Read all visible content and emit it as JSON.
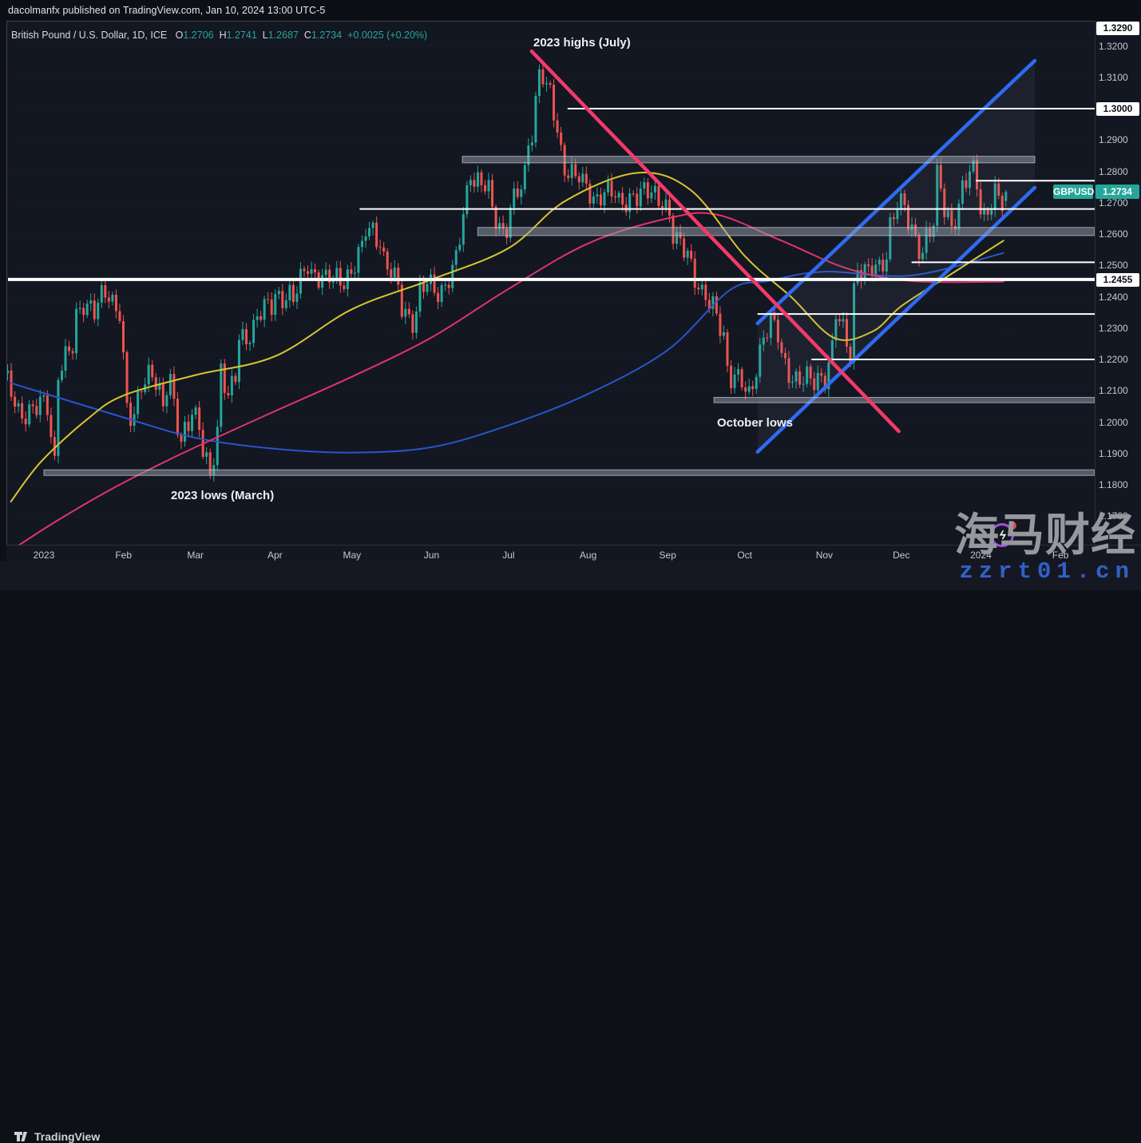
{
  "publish_bar": {
    "text": "dacolmanfx published on TradingView.com, Jan 10, 2024 13:00 UTC-5"
  },
  "legend": {
    "symbol_title": "British Pound / U.S. Dollar, 1D, ICE",
    "ohlc": {
      "o_label": "O",
      "o_value": "1.2706",
      "h_label": "H",
      "h_value": "1.2741",
      "l_label": "L",
      "l_value": "1.2687",
      "c_label": "C",
      "c_value": "1.2734"
    },
    "change": "+0.0025 (+0.20%)"
  },
  "symbol_badge": {
    "label": "GBPUSD",
    "price_label": "1.2734"
  },
  "annotations": {
    "july_highs": {
      "text": "2023 highs (July)"
    },
    "october_lows": {
      "text": "October lows"
    },
    "march_lows": {
      "text": "2023 lows (March)"
    }
  },
  "watermark": {
    "title": "海马财经",
    "url": "zzrt01.cn"
  },
  "footer": {
    "brand": "TradingView"
  },
  "axis": {
    "price_ticks": [
      {
        "label": "1.3290",
        "price": 1.329,
        "style": "white"
      },
      {
        "label": "1.3200",
        "price": 1.32,
        "style": "plain"
      },
      {
        "label": "1.3100",
        "price": 1.31,
        "style": "plain"
      },
      {
        "label": "1.3000",
        "price": 1.3,
        "style": "white"
      },
      {
        "label": "1.2900",
        "price": 1.29,
        "style": "plain"
      },
      {
        "label": "1.2800",
        "price": 1.28,
        "style": "plain"
      },
      {
        "label": "1.2700",
        "price": 1.27,
        "style": "plain"
      },
      {
        "label": "1.2600",
        "price": 1.26,
        "style": "plain"
      },
      {
        "label": "1.2500",
        "price": 1.25,
        "style": "plain"
      },
      {
        "label": "1.2455",
        "price": 1.2455,
        "style": "white"
      },
      {
        "label": "1.2400",
        "price": 1.24,
        "style": "plain"
      },
      {
        "label": "1.2300",
        "price": 1.23,
        "style": "plain"
      },
      {
        "label": "1.2200",
        "price": 1.22,
        "style": "plain"
      },
      {
        "label": "1.2100",
        "price": 1.21,
        "style": "plain"
      },
      {
        "label": "1.2000",
        "price": 1.2,
        "style": "plain"
      },
      {
        "label": "1.1900",
        "price": 1.19,
        "style": "plain"
      },
      {
        "label": "1.1800",
        "price": 1.18,
        "style": "plain"
      },
      {
        "label": "1.1700",
        "price": 1.17,
        "style": "plain"
      }
    ],
    "time_ticks": [
      {
        "label": "2023",
        "date": "2023-01-01"
      },
      {
        "label": "Feb",
        "date": "2023-02-01"
      },
      {
        "label": "Mar",
        "date": "2023-03-01"
      },
      {
        "label": "Apr",
        "date": "2023-04-01"
      },
      {
        "label": "May",
        "date": "2023-05-01"
      },
      {
        "label": "Jun",
        "date": "2023-06-01"
      },
      {
        "label": "Jul",
        "date": "2023-07-01"
      },
      {
        "label": "Aug",
        "date": "2023-08-01"
      },
      {
        "label": "Sep",
        "date": "2023-09-01"
      },
      {
        "label": "Oct",
        "date": "2023-10-01"
      },
      {
        "label": "Nov",
        "date": "2023-11-01"
      },
      {
        "label": "Dec",
        "date": "2023-12-01"
      },
      {
        "label": "2024",
        "date": "2024-01-01"
      },
      {
        "label": "Feb",
        "date": "2024-02-01"
      }
    ]
  },
  "chart_data": {
    "type": "candlestick",
    "symbol": "GBPUSD",
    "timeframe": "1D",
    "exchange": "ICE",
    "title": "British Pound / U.S. Dollar",
    "ylim": [
      1.161,
      1.328
    ],
    "current_price": 1.2734,
    "last_ohlc": {
      "o": 1.2706,
      "h": 1.2741,
      "l": 1.2687,
      "c": 1.2734
    },
    "date_range": [
      "2022-12-19",
      "2024-01-10"
    ],
    "price_path": [
      [
        "2022-12-19",
        1.214
      ],
      [
        "2022-12-23",
        1.204
      ],
      [
        "2022-12-29",
        1.2035
      ],
      [
        "2023-01-04",
        1.2055
      ],
      [
        "2023-01-06",
        1.188
      ],
      [
        "2023-01-09",
        1.217
      ],
      [
        "2023-01-13",
        1.223
      ],
      [
        "2023-01-18",
        1.239
      ],
      [
        "2023-01-23",
        1.236
      ],
      [
        "2023-01-26",
        1.24
      ],
      [
        "2023-02-01",
        1.237
      ],
      [
        "2023-02-03",
        1.205
      ],
      [
        "2023-02-07",
        1.1995
      ],
      [
        "2023-02-09",
        1.212
      ],
      [
        "2023-02-14",
        1.218
      ],
      [
        "2023-02-17",
        1.204
      ],
      [
        "2023-02-21",
        1.2115
      ],
      [
        "2023-02-24",
        1.1945
      ],
      [
        "2023-03-01",
        1.2025
      ],
      [
        "2023-03-08",
        1.1845
      ],
      [
        "2023-03-13",
        1.218
      ],
      [
        "2023-03-15",
        1.206
      ],
      [
        "2023-03-20",
        1.227
      ],
      [
        "2023-03-23",
        1.229
      ],
      [
        "2023-03-28",
        1.234
      ],
      [
        "2023-04-03",
        1.2415
      ],
      [
        "2023-04-10",
        1.238
      ],
      [
        "2023-04-14",
        1.252
      ],
      [
        "2023-04-21",
        1.244
      ],
      [
        "2023-04-26",
        1.2465
      ],
      [
        "2023-05-02",
        1.247
      ],
      [
        "2023-05-08",
        1.262
      ],
      [
        "2023-05-10",
        1.2625
      ],
      [
        "2023-05-16",
        1.2485
      ],
      [
        "2023-05-25",
        1.2325
      ],
      [
        "2023-05-31",
        1.244
      ],
      [
        "2023-06-06",
        1.2425
      ],
      [
        "2023-06-12",
        1.251
      ],
      [
        "2023-06-16",
        1.2815
      ],
      [
        "2023-06-22",
        1.2745
      ],
      [
        "2023-06-29",
        1.2615
      ],
      [
        "2023-07-06",
        1.274
      ],
      [
        "2023-07-11",
        1.2935
      ],
      [
        "2023-07-13",
        1.313
      ],
      [
        "2023-07-18",
        1.3035
      ],
      [
        "2023-07-21",
        1.286
      ],
      [
        "2023-07-27",
        1.279
      ],
      [
        "2023-08-03",
        1.2715
      ],
      [
        "2023-08-08",
        1.2745
      ],
      [
        "2023-08-14",
        1.2685
      ],
      [
        "2023-08-18",
        1.2735
      ],
      [
        "2023-08-23",
        1.2725
      ],
      [
        "2023-08-30",
        1.272
      ],
      [
        "2023-09-05",
        1.2565
      ],
      [
        "2023-09-11",
        1.251
      ],
      [
        "2023-09-14",
        1.241
      ],
      [
        "2023-09-20",
        1.234
      ],
      [
        "2023-09-26",
        1.2155
      ],
      [
        "2023-10-03",
        1.2075
      ],
      [
        "2023-10-06",
        1.2235
      ],
      [
        "2023-10-11",
        1.2315
      ],
      [
        "2023-10-17",
        1.2185
      ],
      [
        "2023-10-20",
        1.214
      ],
      [
        "2023-10-26",
        1.2125
      ],
      [
        "2023-11-01",
        1.2155
      ],
      [
        "2023-11-06",
        1.234
      ],
      [
        "2023-11-10",
        1.2225
      ],
      [
        "2023-11-14",
        1.25
      ],
      [
        "2023-11-17",
        1.2465
      ],
      [
        "2023-11-22",
        1.249
      ],
      [
        "2023-11-29",
        1.2695
      ],
      [
        "2023-12-04",
        1.2635
      ],
      [
        "2023-12-08",
        1.255
      ],
      [
        "2023-12-13",
        1.262
      ],
      [
        "2023-12-14",
        1.277
      ],
      [
        "2023-12-20",
        1.264
      ],
      [
        "2023-12-28",
        1.28
      ],
      [
        "2024-01-02",
        1.2665
      ],
      [
        "2024-01-05",
        1.272
      ],
      [
        "2024-01-09",
        1.269
      ],
      [
        "2024-01-10",
        1.2734
      ]
    ],
    "ma_yellow": [
      [
        "2022-12-19",
        1.1745
      ],
      [
        "2022-12-31",
        1.1875
      ],
      [
        "2023-01-18",
        1.201
      ],
      [
        "2023-02-01",
        1.2085
      ],
      [
        "2023-03-01",
        1.215
      ],
      [
        "2023-04-01",
        1.221
      ],
      [
        "2023-05-01",
        1.236
      ],
      [
        "2023-06-01",
        1.2455
      ],
      [
        "2023-07-01",
        1.2555
      ],
      [
        "2023-07-23",
        1.2705
      ],
      [
        "2023-08-20",
        1.2795
      ],
      [
        "2023-09-10",
        1.274
      ],
      [
        "2023-10-01",
        1.253
      ],
      [
        "2023-10-19",
        1.24
      ],
      [
        "2023-11-05",
        1.2268
      ],
      [
        "2023-11-20",
        1.229
      ],
      [
        "2023-12-01",
        1.237
      ],
      [
        "2023-12-20",
        1.247
      ],
      [
        "2024-01-10",
        1.258
      ]
    ],
    "ma_magenta": [
      [
        "2022-12-19",
        1.159
      ],
      [
        "2023-01-05",
        1.168
      ],
      [
        "2023-01-27",
        1.1785
      ],
      [
        "2023-02-14",
        1.1861
      ],
      [
        "2023-03-01",
        1.192
      ],
      [
        "2023-04-01",
        1.2035
      ],
      [
        "2023-05-01",
        1.2145
      ],
      [
        "2023-06-01",
        1.227
      ],
      [
        "2023-07-01",
        1.2425
      ],
      [
        "2023-08-01",
        1.257
      ],
      [
        "2023-09-01",
        1.265
      ],
      [
        "2023-09-20",
        1.2662
      ],
      [
        "2023-10-15",
        1.258
      ],
      [
        "2023-11-10",
        1.249
      ],
      [
        "2023-12-05",
        1.245
      ],
      [
        "2024-01-10",
        1.2448
      ]
    ],
    "ma_blue": [
      [
        "2022-12-19",
        1.2125
      ],
      [
        "2023-02-01",
        1.2015
      ],
      [
        "2023-03-01",
        1.195
      ],
      [
        "2023-04-01",
        1.1915
      ],
      [
        "2023-05-01",
        1.1903
      ],
      [
        "2023-06-01",
        1.192
      ],
      [
        "2023-07-01",
        1.199
      ],
      [
        "2023-08-01",
        1.209
      ],
      [
        "2023-09-01",
        1.223
      ],
      [
        "2023-09-25",
        1.242
      ],
      [
        "2023-10-10",
        1.245
      ],
      [
        "2023-11-01",
        1.248
      ],
      [
        "2023-12-05",
        1.2468
      ],
      [
        "2024-01-10",
        1.254
      ]
    ],
    "trendline_pink": {
      "from": {
        "d": "2023-07-10",
        "p": 1.3183
      },
      "to": {
        "d": "2023-11-30",
        "p": 1.1971
      }
    },
    "channel_blue": {
      "upper": {
        "from": {
          "d": "2023-10-06",
          "p": 1.2315
        },
        "to": {
          "d": "2024-01-22",
          "p": 1.3153
        }
      },
      "lower": {
        "from": {
          "d": "2023-10-06",
          "p": 1.1905
        },
        "to": {
          "d": "2024-01-22",
          "p": 1.2748
        }
      }
    },
    "levels": [
      {
        "price": 1.3,
        "from": "2023-07-24",
        "width": 2
      },
      {
        "price": 1.277,
        "from": "2023-12-30",
        "width": 2
      },
      {
        "price": 1.268,
        "from": "2023-05-04",
        "width": 2
      },
      {
        "price": 1.251,
        "from": "2023-12-05",
        "width": 2
      },
      {
        "price": 1.2455,
        "from": "2022-12-18",
        "width": 4
      },
      {
        "price": 1.2345,
        "from": "2023-10-06",
        "width": 2
      },
      {
        "price": 1.22,
        "from": "2023-10-27",
        "width": 2
      }
    ],
    "bands": [
      {
        "top": 1.2848,
        "bottom": 1.2827,
        "from": "2023-06-13",
        "to": "2024-01-22"
      },
      {
        "top": 1.2621,
        "bottom": 1.2595,
        "from": "2023-06-19"
      },
      {
        "top": 1.2079,
        "bottom": 1.2062,
        "from": "2023-09-19"
      },
      {
        "top": 1.1848,
        "bottom": 1.183,
        "from": "2023-01-01"
      }
    ],
    "colors": {
      "up": "#26a69a",
      "down": "#ef5350",
      "ma_yellow": "#d8c52e",
      "ma_magenta": "#e0346d",
      "ma_blue": "#2856c9",
      "trend_pink": "#f23a6a",
      "channel": "#2e6bf0",
      "channel_fill": "rgba(128,144,178,0.09)",
      "level_white": "#ffffff",
      "band_fill": "rgba(152,159,172,0.5)",
      "band_stroke": "rgba(225,229,236,0.6)",
      "grid": "rgba(178,181,190,0.10)",
      "background": "#131722",
      "badge": "#26a69a"
    }
  }
}
